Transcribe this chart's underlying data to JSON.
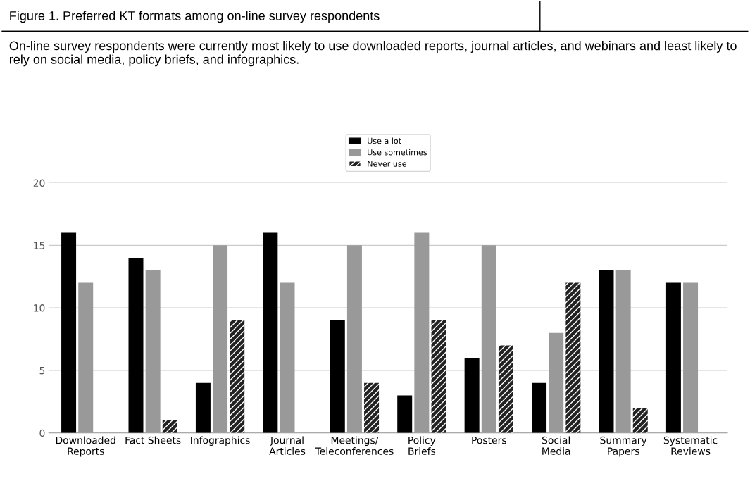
{
  "chart_data": {
    "type": "bar",
    "title": "Figure 1. Preferred KT formats among on-line survey respondents",
    "subtitle": "On-line survey respondents were currently most likely to use downloaded reports, journal articles, and webinars and least likely to rely on social media, policy briefs, and infographics.",
    "categories": [
      "Downloaded\nReports",
      "Fact Sheets",
      "Infographics",
      "Journal\nArticles",
      "Meetings/\nTeleconferences",
      "Policy\nBriefs",
      "Posters",
      "Social\nMedia",
      "Summary\nPapers",
      "Systematic\nReviews"
    ],
    "series": [
      {
        "name": "Use a lot",
        "color": "#000000",
        "values": [
          16,
          14,
          4,
          16,
          9,
          3,
          6,
          4,
          13,
          12
        ]
      },
      {
        "name": "Use sometimes",
        "color": "#999999",
        "values": [
          12,
          13,
          15,
          12,
          15,
          16,
          15,
          8,
          13,
          12
        ]
      },
      {
        "name": "Never use",
        "color": "#222222",
        "values": [
          0,
          1,
          9,
          0,
          4,
          9,
          7,
          12,
          2,
          0
        ]
      }
    ],
    "ylim": [
      0,
      20
    ],
    "yticks": [
      0,
      5,
      10,
      15,
      20
    ],
    "grid": "y",
    "legend": "top"
  }
}
